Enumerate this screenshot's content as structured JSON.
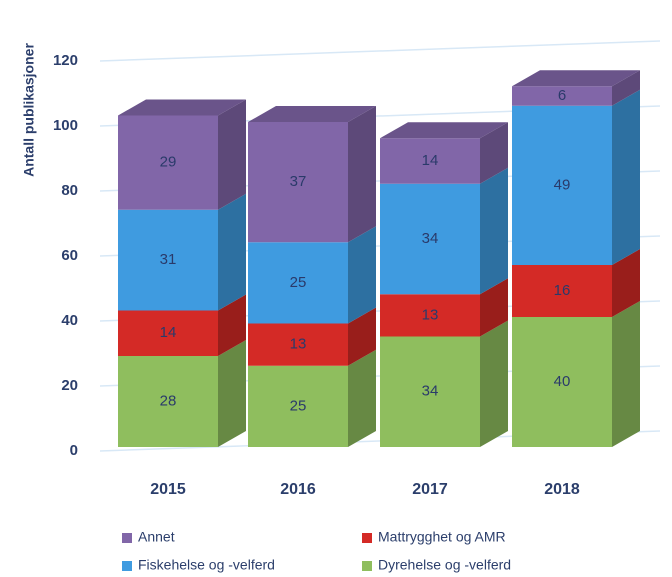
{
  "chart_data": {
    "type": "bar",
    "stacked": true,
    "y_label": "Antall publikasjoner",
    "categories": [
      "2015",
      "2016",
      "2017",
      "2018"
    ],
    "series": [
      {
        "name": "Dyrehelse og -velferd",
        "color": "#8fbe5e",
        "values": [
          28,
          25,
          34,
          40
        ]
      },
      {
        "name": "Mattrygghet og AMR",
        "color": "#d42a26",
        "values": [
          14,
          13,
          13,
          16
        ]
      },
      {
        "name": "Fiskehelse og -velferd",
        "color": "#3f9be0",
        "values": [
          31,
          25,
          34,
          49
        ]
      },
      {
        "name": "Annet",
        "color": "#8166a8",
        "values": [
          29,
          37,
          14,
          6
        ]
      }
    ],
    "ylim": [
      0,
      120
    ],
    "yticks": [
      0,
      20,
      40,
      60,
      80,
      100,
      120
    ],
    "grid": true
  }
}
